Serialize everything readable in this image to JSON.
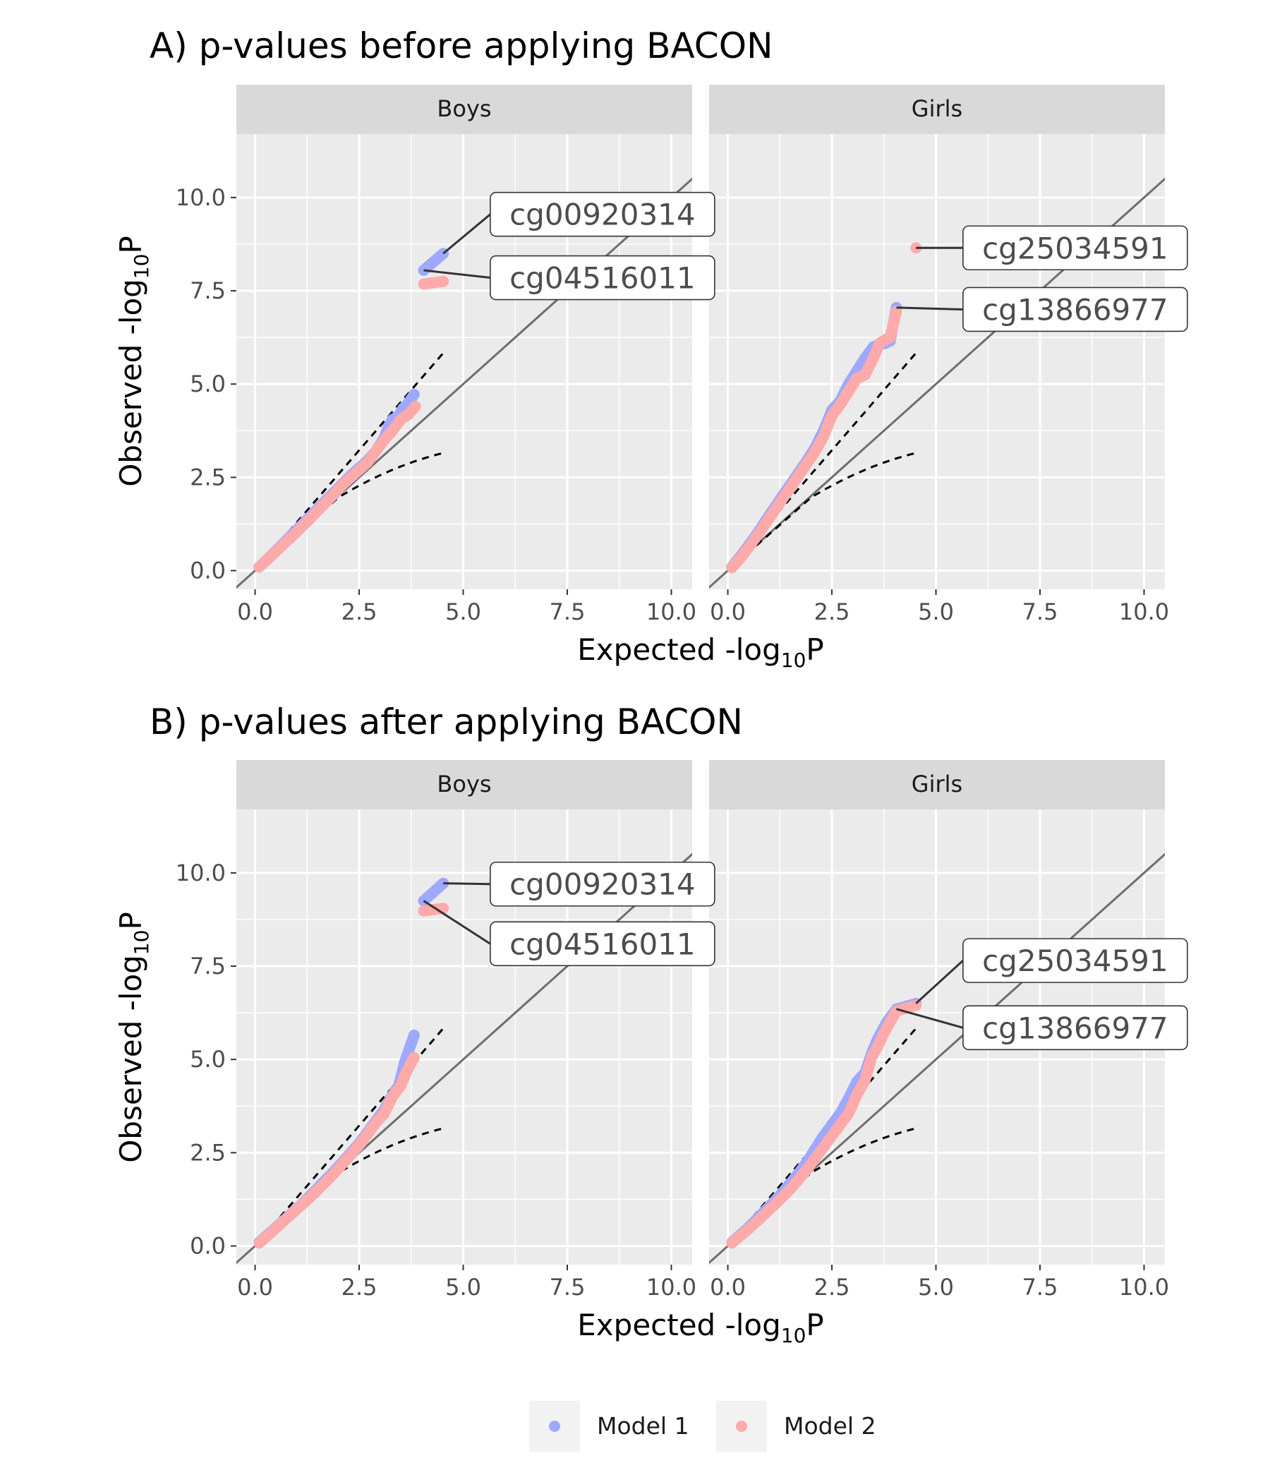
{
  "legend": {
    "items": [
      {
        "label": "Model 1",
        "color": "#9fa8ff"
      },
      {
        "label": "Model 2",
        "color": "#ffaaaa"
      }
    ]
  },
  "chart_data": [
    {
      "type": "scatter",
      "title": "A) p-values before applying BACON",
      "xlabel": "Expected -log10P",
      "ylabel": "Observed -log10P",
      "xlim": [
        -0.45,
        10.5
      ],
      "ylim": [
        -0.5,
        11.7
      ],
      "xticks": [
        "0.0",
        "2.5",
        "5.0",
        "7.5",
        "10.0"
      ],
      "yticks": [
        "0.0",
        "2.5",
        "5.0",
        "7.5",
        "10.0"
      ],
      "grid": true,
      "legend_position": "bottom",
      "panels": [
        {
          "strip": "Boys",
          "series": [
            {
              "name": "Model 1",
              "color": "#9fa8ff",
              "x": [
                0.1,
                0.3,
                0.5,
                0.7,
                0.9,
                1.1,
                1.3,
                1.5,
                1.7,
                1.9,
                2.1,
                2.3,
                2.5,
                2.7,
                2.9,
                3.1,
                3.2,
                3.3,
                3.45,
                3.55,
                3.65,
                3.82,
                4.05,
                4.52
              ],
              "y": [
                0.1,
                0.31,
                0.53,
                0.75,
                0.98,
                1.2,
                1.43,
                1.65,
                1.88,
                2.1,
                2.33,
                2.55,
                2.75,
                2.95,
                3.2,
                3.55,
                3.85,
                4.05,
                4.15,
                4.35,
                4.45,
                4.72,
                8.05,
                8.5
              ]
            },
            {
              "name": "Model 2",
              "color": "#ffaaaa",
              "x": [
                0.1,
                0.3,
                0.5,
                0.7,
                0.9,
                1.1,
                1.3,
                1.5,
                1.7,
                1.9,
                2.1,
                2.3,
                2.5,
                2.7,
                2.9,
                3.1,
                3.3,
                3.5,
                3.7,
                3.85,
                4.05,
                4.52
              ],
              "y": [
                0.1,
                0.3,
                0.51,
                0.72,
                0.93,
                1.15,
                1.37,
                1.6,
                1.83,
                2.05,
                2.3,
                2.5,
                2.7,
                2.9,
                3.2,
                3.5,
                3.75,
                4.05,
                4.2,
                4.4,
                7.68,
                7.75
              ]
            }
          ],
          "annotations": [
            {
              "label": "cg00920314",
              "point": [
                4.52,
                8.5
              ],
              "box": [
                5.65,
                9.55
              ]
            },
            {
              "label": "cg04516011",
              "point": [
                4.05,
                8.05
              ],
              "box": [
                5.65,
                7.85
              ]
            }
          ]
        },
        {
          "strip": "Girls",
          "series": [
            {
              "name": "Model 1",
              "color": "#9fa8ff",
              "x": [
                0.1,
                0.3,
                0.5,
                0.7,
                0.9,
                1.1,
                1.3,
                1.5,
                1.7,
                1.9,
                2.1,
                2.3,
                2.5,
                2.7,
                2.9,
                3.1,
                3.3,
                3.5,
                3.65,
                3.8,
                3.9,
                4.05
              ],
              "y": [
                0.1,
                0.38,
                0.68,
                0.98,
                1.32,
                1.65,
                1.98,
                2.3,
                2.62,
                2.95,
                3.3,
                3.75,
                4.3,
                4.55,
                5.0,
                5.35,
                5.7,
                6.0,
                6.05,
                6.1,
                6.15,
                7.05
              ]
            },
            {
              "name": "Model 2",
              "color": "#ffaaaa",
              "x": [
                0.1,
                0.3,
                0.5,
                0.7,
                0.9,
                1.1,
                1.3,
                1.5,
                1.7,
                1.9,
                2.1,
                2.3,
                2.5,
                2.7,
                2.9,
                3.1,
                3.3,
                3.5,
                3.65,
                3.8,
                3.9,
                4.05,
                4.52
              ],
              "y": [
                0.08,
                0.33,
                0.62,
                0.93,
                1.25,
                1.57,
                1.9,
                2.22,
                2.55,
                2.87,
                3.2,
                3.6,
                4.15,
                4.45,
                4.8,
                5.15,
                5.25,
                5.7,
                6.1,
                6.2,
                6.25,
                6.95,
                8.65
              ]
            }
          ],
          "annotations": [
            {
              "label": "cg25034591",
              "point": [
                4.52,
                8.65
              ],
              "box": [
                5.65,
                8.65
              ]
            },
            {
              "label": "cg13866977",
              "point": [
                4.05,
                7.05
              ],
              "box": [
                5.65,
                7.0
              ]
            }
          ]
        }
      ]
    },
    {
      "type": "scatter",
      "title": "B) p-values after applying BACON",
      "xlabel": "Expected -log10P",
      "ylabel": "Observed -log10P",
      "xlim": [
        -0.45,
        10.5
      ],
      "ylim": [
        -0.5,
        11.7
      ],
      "xticks": [
        "0.0",
        "2.5",
        "5.0",
        "7.5",
        "10.0"
      ],
      "yticks": [
        "0.0",
        "2.5",
        "5.0",
        "7.5",
        "10.0"
      ],
      "grid": true,
      "legend_position": "bottom",
      "panels": [
        {
          "strip": "Boys",
          "series": [
            {
              "name": "Model 1",
              "color": "#9fa8ff",
              "x": [
                0.1,
                0.3,
                0.5,
                0.7,
                0.9,
                1.1,
                1.3,
                1.5,
                1.7,
                1.9,
                2.1,
                2.3,
                2.5,
                2.7,
                2.9,
                3.1,
                3.3,
                3.45,
                3.6,
                3.82,
                4.05,
                4.52
              ],
              "y": [
                0.1,
                0.3,
                0.5,
                0.7,
                0.9,
                1.1,
                1.32,
                1.55,
                1.78,
                2.0,
                2.25,
                2.5,
                2.75,
                3.05,
                3.35,
                3.65,
                4.05,
                4.3,
                4.95,
                5.65,
                9.25,
                9.72
              ]
            },
            {
              "name": "Model 2",
              "color": "#ffaaaa",
              "x": [
                0.1,
                0.3,
                0.5,
                0.7,
                0.9,
                1.1,
                1.3,
                1.5,
                1.7,
                1.9,
                2.1,
                2.3,
                2.5,
                2.7,
                2.9,
                3.1,
                3.3,
                3.5,
                3.65,
                3.82,
                4.05,
                4.52
              ],
              "y": [
                0.08,
                0.28,
                0.48,
                0.68,
                0.88,
                1.08,
                1.28,
                1.5,
                1.72,
                1.95,
                2.2,
                2.45,
                2.7,
                3.0,
                3.3,
                3.55,
                4.0,
                4.3,
                4.7,
                5.05,
                8.98,
                9.05
              ]
            }
          ],
          "annotations": [
            {
              "label": "cg00920314",
              "point": [
                4.52,
                9.72
              ],
              "box": [
                5.65,
                9.7
              ]
            },
            {
              "label": "cg04516011",
              "point": [
                4.05,
                9.25
              ],
              "box": [
                5.65,
                8.1
              ]
            }
          ]
        },
        {
          "strip": "Girls",
          "series": [
            {
              "name": "Model 1",
              "color": "#9fa8ff",
              "x": [
                0.1,
                0.3,
                0.5,
                0.7,
                0.9,
                1.1,
                1.3,
                1.5,
                1.7,
                1.9,
                2.1,
                2.3,
                2.5,
                2.7,
                2.9,
                3.1,
                3.3,
                3.45,
                3.6,
                3.82,
                4.05,
                4.52
              ],
              "y": [
                0.1,
                0.3,
                0.5,
                0.72,
                0.95,
                1.18,
                1.42,
                1.68,
                1.95,
                2.25,
                2.6,
                2.95,
                3.25,
                3.55,
                3.95,
                4.4,
                4.65,
                5.15,
                5.55,
                6.0,
                6.35,
                6.5
              ]
            },
            {
              "name": "Model 2",
              "color": "#ffaaaa",
              "x": [
                0.1,
                0.3,
                0.5,
                0.7,
                0.9,
                1.1,
                1.3,
                1.5,
                1.7,
                1.9,
                2.1,
                2.3,
                2.5,
                2.7,
                2.9,
                3.1,
                3.3,
                3.45,
                3.6,
                3.82,
                4.05,
                4.52
              ],
              "y": [
                0.08,
                0.27,
                0.46,
                0.66,
                0.87,
                1.08,
                1.3,
                1.52,
                1.78,
                2.05,
                2.35,
                2.65,
                2.95,
                3.25,
                3.55,
                4.05,
                4.45,
                5.05,
                5.35,
                5.85,
                6.3,
                6.45
              ]
            }
          ],
          "annotations": [
            {
              "label": "cg25034591",
              "point": [
                4.52,
                6.5
              ],
              "box": [
                5.65,
                7.65
              ]
            },
            {
              "label": "cg13866977",
              "point": [
                4.05,
                6.35
              ],
              "box": [
                5.65,
                5.85
              ]
            }
          ]
        }
      ]
    }
  ]
}
